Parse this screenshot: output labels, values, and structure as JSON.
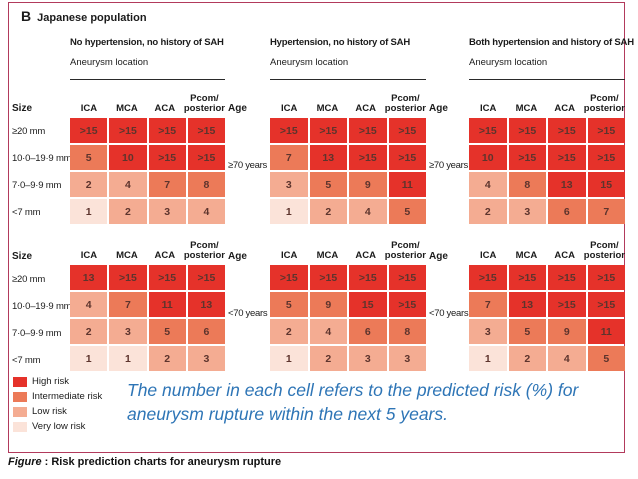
{
  "panel": {
    "label": "B",
    "title": "Japanese population"
  },
  "column_groups": [
    "No hypertension, no history of SAH",
    "Hypertension, no history of SAH",
    "Both hypertension and history of SAH"
  ],
  "labels": {
    "aneurysm_location": "Aneurysm location",
    "size": "Size",
    "age": "Age"
  },
  "location_columns_display": [
    [
      "ICA"
    ],
    [
      "MCA"
    ],
    [
      "ACA"
    ],
    [
      "Pcom/",
      "posterior"
    ]
  ],
  "size_rows": [
    "≥20 mm",
    "10·0–19·9 mm",
    "7·0–9·9 mm",
    "<7 mm"
  ],
  "age_rows": [
    "≥70 years",
    "<70 years"
  ],
  "legend": [
    {
      "label": "High risk",
      "color": "#e5322a"
    },
    {
      "label": "Intermediate risk",
      "color": "#ec7a58"
    },
    {
      "label": "Low risk",
      "color": "#f4ac92"
    },
    {
      "label": "Very low risk",
      "color": "#fbe3d9"
    }
  ],
  "note": "The number in each cell refers to the predicted risk (%) for aneurysm rupture within the next 5 years.",
  "figure_caption": {
    "prefix": "Figure",
    "text": ": Risk prediction charts for aneurysm rupture"
  },
  "chart_data": {
    "type": "heatmap",
    "title": "B Japanese population",
    "value_unit": "predicted 5-year aneurysm rupture risk (%)",
    "columns": [
      "ICA",
      "MCA",
      "ACA",
      "Pcom/posterior"
    ],
    "row_categories": [
      "≥20 mm",
      "10·0–19·9 mm",
      "7·0–9·9 mm",
      "<7 mm"
    ],
    "risk_colors": {
      "high": "#e5322a",
      "intermediate": "#ec7a58",
      "low": "#f4ac92",
      "verylow": "#fbe3d9"
    },
    "tables": [
      {
        "condition": "No hypertension, no history of SAH",
        "age_group": "≥70 years",
        "rows": [
          {
            "size": "≥20 mm",
            "values": [
              ">15",
              ">15",
              ">15",
              ">15"
            ],
            "risk": [
              "high",
              "high",
              "high",
              "high"
            ]
          },
          {
            "size": "10·0–19·9 mm",
            "values": [
              "5",
              "10",
              ">15",
              ">15"
            ],
            "risk": [
              "intermediate",
              "high",
              "high",
              "high"
            ]
          },
          {
            "size": "7·0–9·9 mm",
            "values": [
              "2",
              "4",
              "7",
              "8"
            ],
            "risk": [
              "low",
              "low",
              "intermediate",
              "intermediate"
            ]
          },
          {
            "size": "<7 mm",
            "values": [
              "1",
              "2",
              "3",
              "4"
            ],
            "risk": [
              "verylow",
              "low",
              "low",
              "low"
            ]
          }
        ]
      },
      {
        "condition": "Hypertension, no history of SAH",
        "age_group": "≥70 years",
        "rows": [
          {
            "size": "≥20 mm",
            "values": [
              ">15",
              ">15",
              ">15",
              ">15"
            ],
            "risk": [
              "high",
              "high",
              "high",
              "high"
            ]
          },
          {
            "size": "10·0–19·9 mm",
            "values": [
              "7",
              "13",
              ">15",
              ">15"
            ],
            "risk": [
              "intermediate",
              "high",
              "high",
              "high"
            ]
          },
          {
            "size": "7·0–9·9 mm",
            "values": [
              "3",
              "5",
              "9",
              "11"
            ],
            "risk": [
              "low",
              "intermediate",
              "intermediate",
              "high"
            ]
          },
          {
            "size": "<7 mm",
            "values": [
              "1",
              "2",
              "4",
              "5"
            ],
            "risk": [
              "verylow",
              "low",
              "low",
              "intermediate"
            ]
          }
        ]
      },
      {
        "condition": "Both hypertension and history of SAH",
        "age_group": "≥70 years",
        "rows": [
          {
            "size": "≥20 mm",
            "values": [
              ">15",
              ">15",
              ">15",
              ">15"
            ],
            "risk": [
              "high",
              "high",
              "high",
              "high"
            ]
          },
          {
            "size": "10·0–19·9 mm",
            "values": [
              "10",
              ">15",
              ">15",
              ">15"
            ],
            "risk": [
              "high",
              "high",
              "high",
              "high"
            ]
          },
          {
            "size": "7·0–9·9 mm",
            "values": [
              "4",
              "8",
              "13",
              "15"
            ],
            "risk": [
              "low",
              "intermediate",
              "high",
              "high"
            ]
          },
          {
            "size": "<7 mm",
            "values": [
              "2",
              "3",
              "6",
              "7"
            ],
            "risk": [
              "low",
              "low",
              "intermediate",
              "intermediate"
            ]
          }
        ]
      },
      {
        "condition": "No hypertension, no history of SAH",
        "age_group": "<70 years",
        "rows": [
          {
            "size": "≥20 mm",
            "values": [
              "13",
              ">15",
              ">15",
              ">15"
            ],
            "risk": [
              "high",
              "high",
              "high",
              "high"
            ]
          },
          {
            "size": "10·0–19·9 mm",
            "values": [
              "4",
              "7",
              "11",
              "13"
            ],
            "risk": [
              "low",
              "intermediate",
              "high",
              "high"
            ]
          },
          {
            "size": "7·0–9·9 mm",
            "values": [
              "2",
              "3",
              "5",
              "6"
            ],
            "risk": [
              "low",
              "low",
              "intermediate",
              "intermediate"
            ]
          },
          {
            "size": "<7 mm",
            "values": [
              "1",
              "1",
              "2",
              "3"
            ],
            "risk": [
              "verylow",
              "verylow",
              "low",
              "low"
            ]
          }
        ]
      },
      {
        "condition": "Hypertension, no history of SAH",
        "age_group": "<70 years",
        "rows": [
          {
            "size": "≥20 mm",
            "values": [
              ">15",
              ">15",
              ">15",
              ">15"
            ],
            "risk": [
              "high",
              "high",
              "high",
              "high"
            ]
          },
          {
            "size": "10·0–19·9 mm",
            "values": [
              "5",
              "9",
              "15",
              ">15"
            ],
            "risk": [
              "intermediate",
              "intermediate",
              "high",
              "high"
            ]
          },
          {
            "size": "7·0–9·9 mm",
            "values": [
              "2",
              "4",
              "6",
              "8"
            ],
            "risk": [
              "low",
              "low",
              "intermediate",
              "intermediate"
            ]
          },
          {
            "size": "<7 mm",
            "values": [
              "1",
              "2",
              "3",
              "3"
            ],
            "risk": [
              "verylow",
              "low",
              "low",
              "low"
            ]
          }
        ]
      },
      {
        "condition": "Both hypertension and history of SAH",
        "age_group": "<70 years",
        "rows": [
          {
            "size": "≥20 mm",
            "values": [
              ">15",
              ">15",
              ">15",
              ">15"
            ],
            "risk": [
              "high",
              "high",
              "high",
              "high"
            ]
          },
          {
            "size": "10·0–19·9 mm",
            "values": [
              "7",
              "13",
              ">15",
              ">15"
            ],
            "risk": [
              "intermediate",
              "high",
              "high",
              "high"
            ]
          },
          {
            "size": "7·0–9·9 mm",
            "values": [
              "3",
              "5",
              "9",
              "11"
            ],
            "risk": [
              "low",
              "intermediate",
              "intermediate",
              "high"
            ]
          },
          {
            "size": "<7 mm",
            "values": [
              "1",
              "2",
              "4",
              "5"
            ],
            "risk": [
              "verylow",
              "low",
              "low",
              "intermediate"
            ]
          }
        ]
      }
    ]
  }
}
